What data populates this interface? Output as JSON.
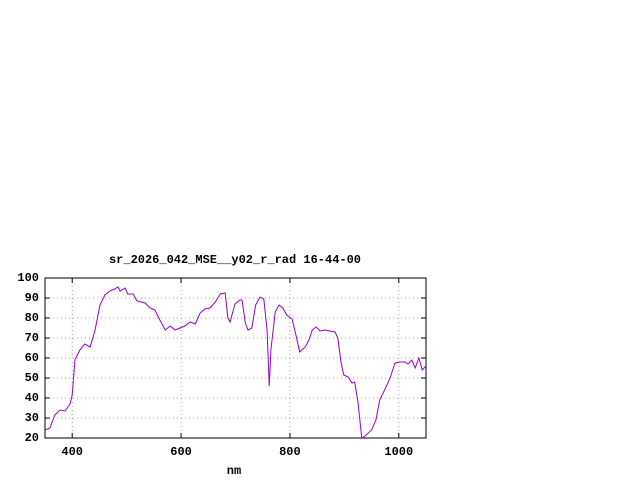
{
  "chart_data": {
    "type": "line",
    "title": "sr_2026_042_MSE__y02_r_rad 16-44-00",
    "xlabel": "nm",
    "x": [
      350,
      359,
      368,
      378,
      387,
      396,
      400,
      405,
      414,
      423,
      433,
      442,
      451,
      460,
      469,
      478,
      484,
      488,
      497,
      502,
      512,
      519,
      534,
      543,
      552,
      561,
      571,
      580,
      589,
      598,
      607,
      617,
      626,
      635,
      644,
      653,
      663,
      672,
      681,
      686,
      690,
      699,
      708,
      712,
      718,
      723,
      730,
      737,
      745,
      752,
      758,
      762,
      765,
      773,
      780,
      787,
      794,
      804,
      811,
      818,
      828,
      835,
      841,
      848,
      855,
      864,
      874,
      883,
      888,
      894,
      899,
      907,
      914,
      919,
      925,
      932,
      938,
      950,
      958,
      965,
      974,
      984,
      993,
      1002,
      1011,
      1017,
      1024,
      1030,
      1037,
      1043,
      1050
    ],
    "series": [
      {
        "color": "#9400d3",
        "values": [
          24,
          25,
          31.5,
          34,
          33.5,
          37,
          41.5,
          59,
          64,
          67,
          65.5,
          74,
          86.5,
          91.5,
          93.5,
          94.5,
          95.5,
          93.5,
          95,
          92,
          92,
          88.5,
          87.5,
          85,
          84,
          79,
          74,
          76,
          74,
          75,
          76,
          78,
          77,
          82.5,
          84.5,
          85,
          88,
          92,
          92.5,
          80,
          78,
          87,
          89,
          89,
          77.5,
          74,
          75,
          86.5,
          90.5,
          89.5,
          74,
          46,
          64,
          83,
          86.5,
          85,
          81.5,
          79.5,
          71.5,
          63,
          65.5,
          69,
          74,
          75.5,
          73.5,
          74,
          73.5,
          73,
          70,
          57.5,
          51.5,
          50.5,
          47.5,
          48,
          38,
          20,
          21,
          24,
          29,
          39,
          44,
          50,
          57.5,
          58,
          58,
          57,
          59,
          55,
          60,
          54,
          56
        ]
      }
    ],
    "xlim": [
      350,
      1050
    ],
    "ylim": [
      20,
      100
    ],
    "xticks": [
      400,
      600,
      800,
      1000
    ],
    "yticks": [
      20,
      30,
      40,
      50,
      60,
      70,
      80,
      90,
      100
    ],
    "grid": true
  }
}
